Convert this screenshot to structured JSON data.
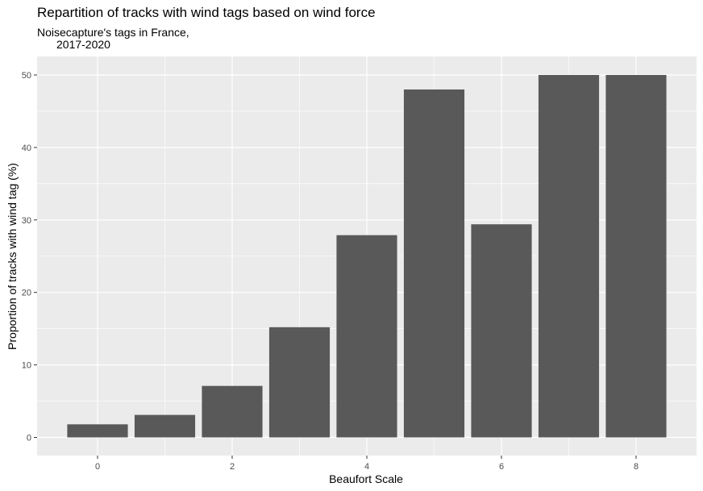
{
  "chart_data": {
    "type": "bar",
    "title": "Repartition of tracks with wind tags based on wind force",
    "subtitle_line1": "Noisecapture's tags in France,",
    "subtitle_line2": "2017-2020",
    "xlabel": "Beaufort Scale",
    "ylabel": "Proportion of tracks with wind tag (%)",
    "categories": [
      0,
      1,
      2,
      3,
      4,
      5,
      6,
      7,
      8
    ],
    "values": [
      1.8,
      3.1,
      7.1,
      15.2,
      27.9,
      48.0,
      29.4,
      50.0,
      50.0
    ],
    "x_ticks": [
      "0",
      "2",
      "4",
      "6",
      "8"
    ],
    "y_ticks": [
      "0",
      "10",
      "20",
      "30",
      "40",
      "50"
    ],
    "xlim": [
      -0.5,
      8.5
    ],
    "ylim": [
      0,
      50
    ],
    "grid": true,
    "colors": {
      "panel": "#EBEBEB",
      "bar": "#595959",
      "grid_major": "#FFFFFF",
      "tick_label": "#4D4D4D"
    }
  }
}
